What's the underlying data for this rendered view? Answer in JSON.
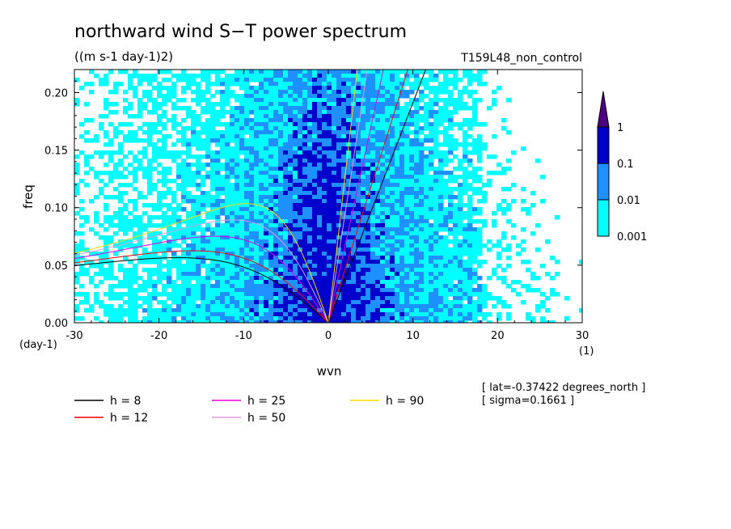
{
  "chart_data": {
    "type": "heatmap",
    "title": "northward wind S−T power spectrum",
    "subtitle": "((m s-1 day-1)2)",
    "run_label": "T159L48_non_control",
    "xlabel": "wvn",
    "ylabel": "freq",
    "x_unit": "(1)",
    "y_unit": "(day-1)",
    "xlim": [
      -30,
      30
    ],
    "ylim": [
      0,
      0.22
    ],
    "x_ticks": [
      "-30",
      "-20",
      "-10",
      "0",
      "10",
      "20",
      "30"
    ],
    "y_ticks": [
      "0.00",
      "0.05",
      "0.10",
      "0.15",
      "0.20"
    ],
    "colorbar": {
      "levels": [
        "0.001",
        "0.01",
        "0.1",
        "1"
      ],
      "colors": [
        "#00ffff",
        "#1e90ff",
        "#0000cd",
        "#4b0082"
      ]
    },
    "field_description_levels": [
      0.001,
      0.01,
      0.1,
      1
    ],
    "series": [
      {
        "name": "h =  8",
        "color": "#000000",
        "equivalent_depth_m": 8
      },
      {
        "name": "h = 12",
        "color": "#ff0000",
        "equivalent_depth_m": 12
      },
      {
        "name": "h = 25",
        "color": "#e000e0",
        "equivalent_depth_m": 25
      },
      {
        "name": "h = 50",
        "color": "#dd99dd",
        "equivalent_depth_m": 50
      },
      {
        "name": "h = 90",
        "color": "#ffd700",
        "equivalent_depth_m": 90
      }
    ],
    "annotations": [
      "[ lat=-0.37422 degrees_north ]",
      "[ sigma=0.1661 ]"
    ],
    "grid": false,
    "legend_position": "bottom"
  }
}
